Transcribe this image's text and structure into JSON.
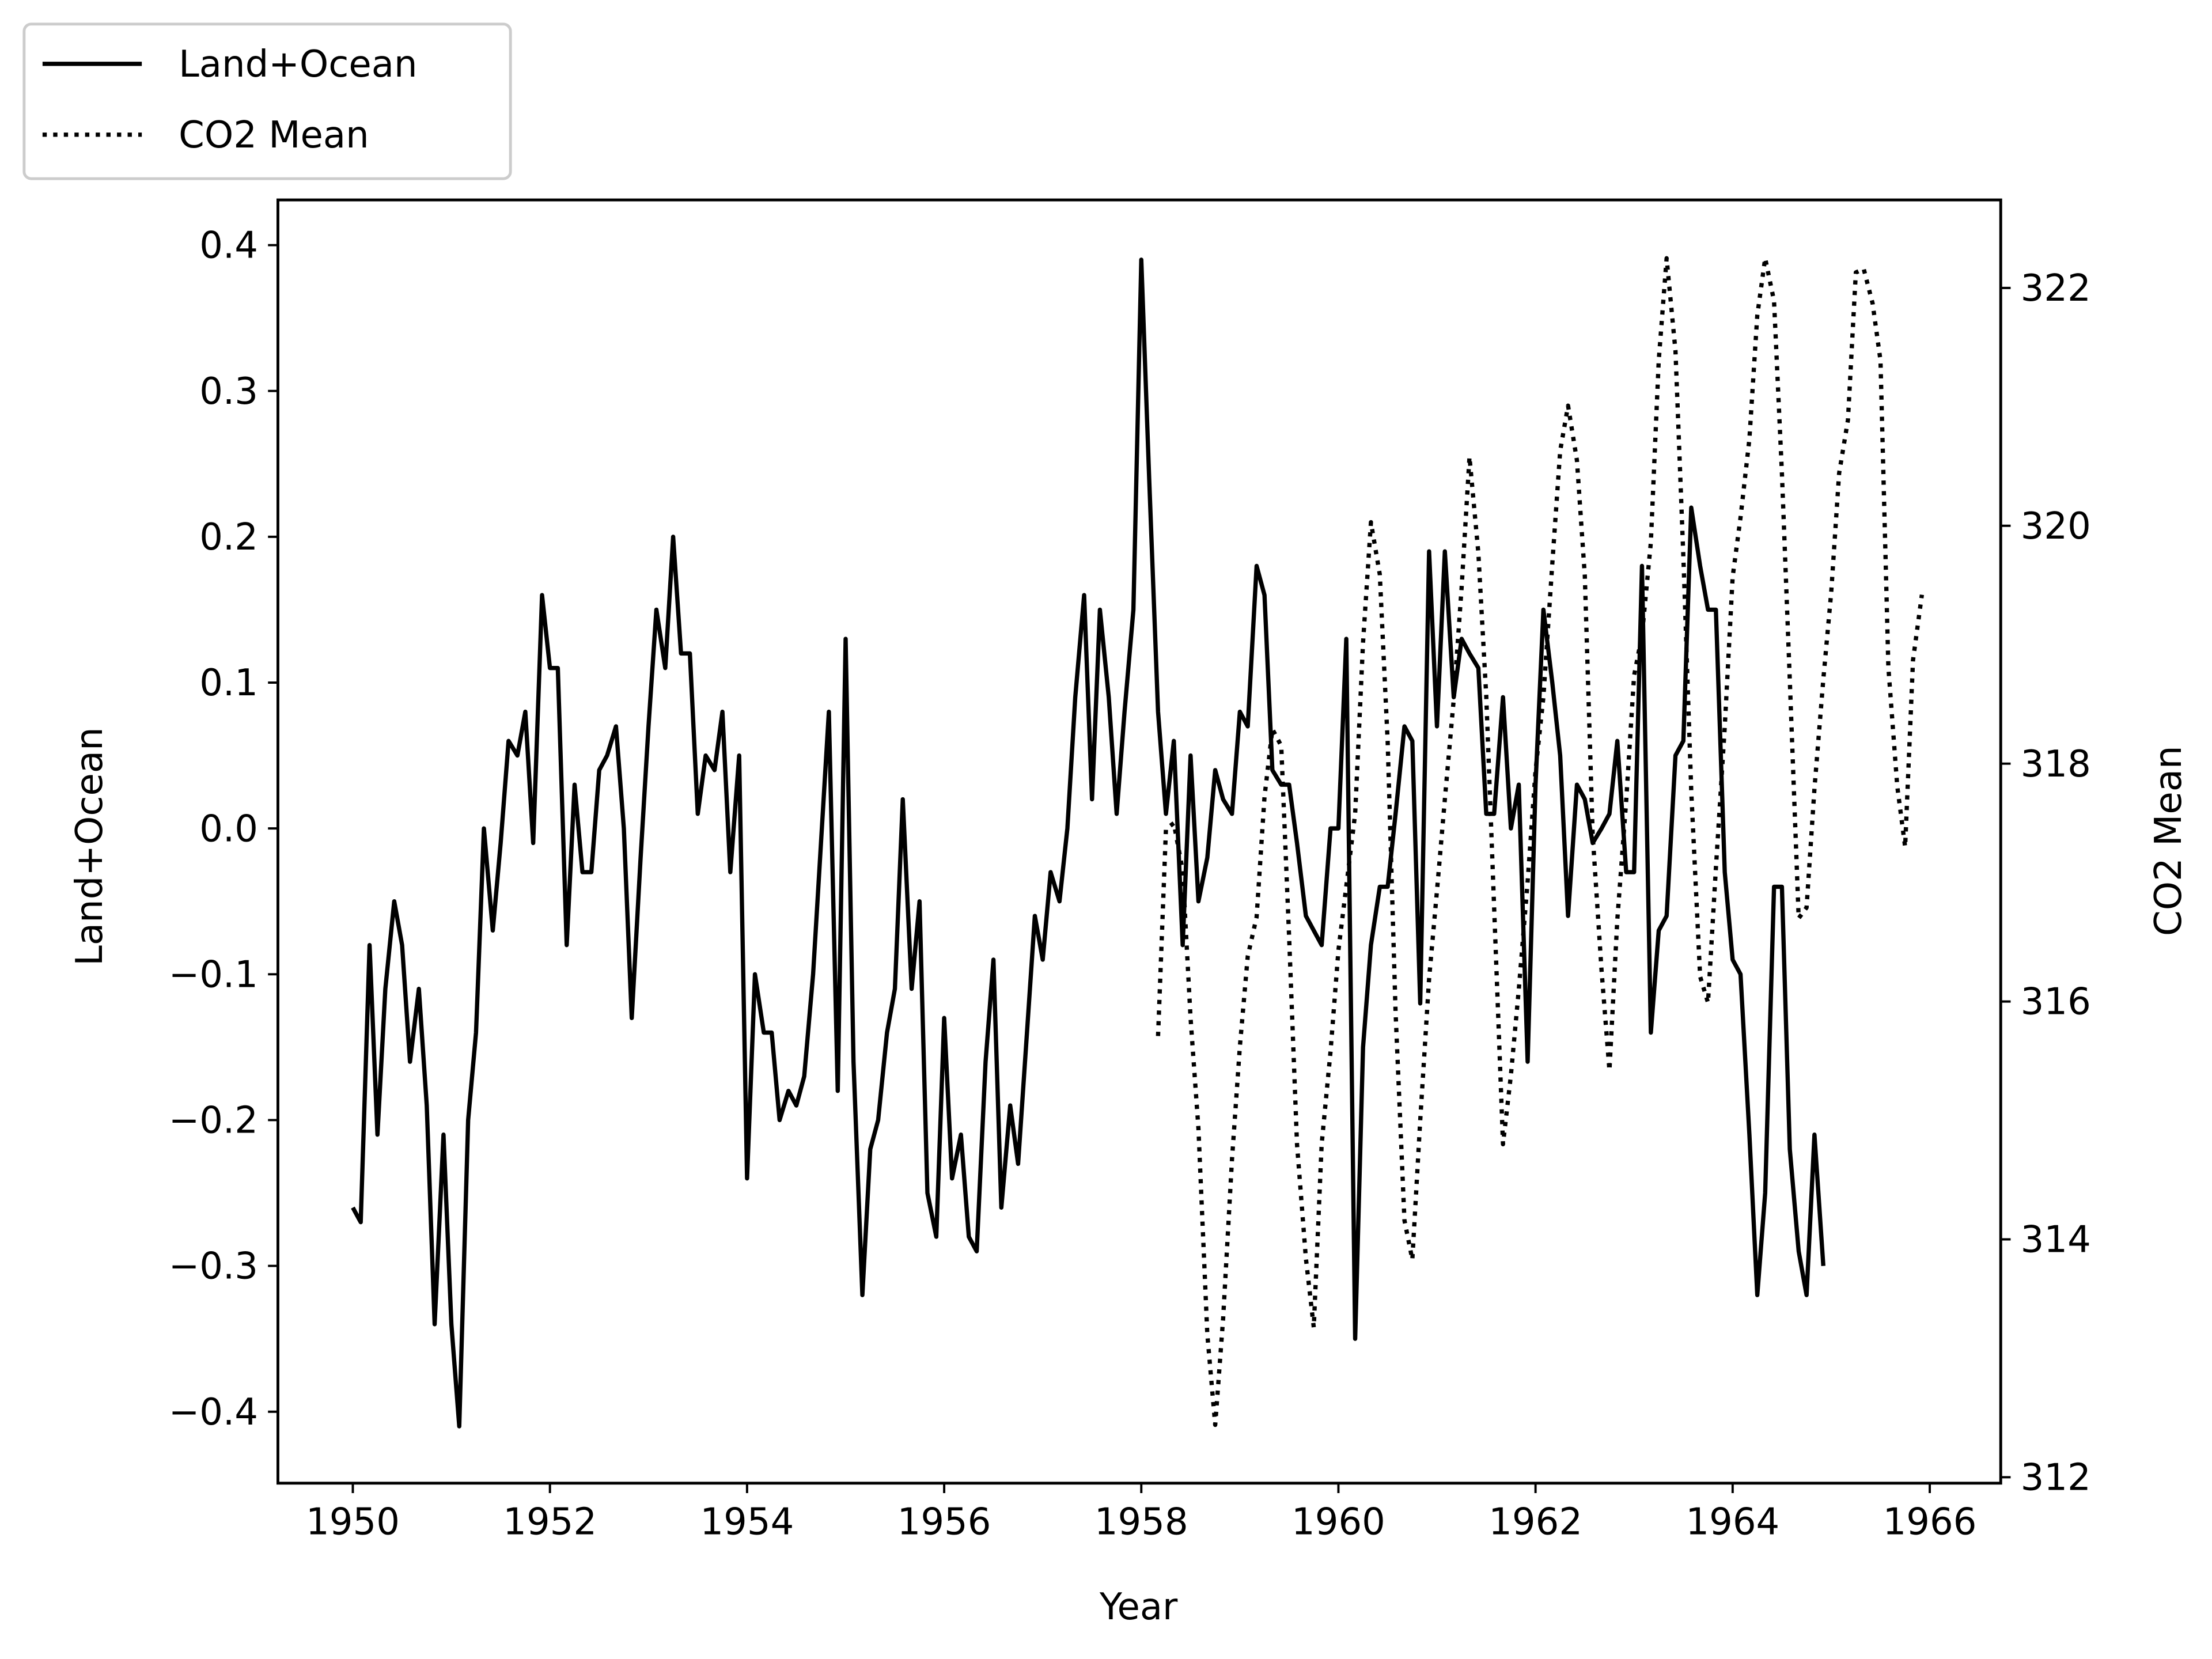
{
  "chart_data": {
    "type": "line",
    "x_label": "Year",
    "y_label": "Land+Ocean",
    "y2_label": "CO2 Mean",
    "xlim": [
      1949.24,
      1966.72
    ],
    "xticks": [
      1950,
      1952,
      1954,
      1956,
      1958,
      1960,
      1962,
      1964,
      1966
    ],
    "ylim": [
      -0.449,
      0.431
    ],
    "yticks": [
      {
        "value": -0.4,
        "label": "−0.4"
      },
      {
        "value": -0.3,
        "label": "−0.3"
      },
      {
        "value": -0.2,
        "label": "−0.2"
      },
      {
        "value": -0.1,
        "label": "−0.1"
      },
      {
        "value": 0,
        "label": "0.0"
      },
      0.1,
      0.2,
      0.3,
      0.4
    ],
    "y2lim": [
      311.95,
      322.74
    ],
    "y2ticks": [
      312,
      314,
      316,
      318,
      320,
      322
    ],
    "legend": "upper left outside",
    "series": [
      {
        "name": "Land+Ocean",
        "color": "#000000",
        "linestyle": "solid",
        "x": [
          1950,
          1950.08,
          1950.17,
          1950.25,
          1950.33,
          1950.42,
          1950.5,
          1950.58,
          1950.67,
          1950.75,
          1950.83,
          1950.92,
          1951,
          1951.08,
          1951.17,
          1951.25,
          1951.33,
          1951.42,
          1951.5,
          1951.58,
          1951.67,
          1951.75,
          1951.83,
          1951.92,
          1952,
          1952.08,
          1952.17,
          1952.25,
          1952.33,
          1952.42,
          1952.5,
          1952.58,
          1952.67,
          1952.75,
          1952.83,
          1952.92,
          1953,
          1953.08,
          1953.17,
          1953.25,
          1953.33,
          1953.42,
          1953.5,
          1953.58,
          1953.67,
          1953.75,
          1953.83,
          1953.92,
          1954,
          1954.08,
          1954.17,
          1954.25,
          1954.33,
          1954.42,
          1954.5,
          1954.58,
          1954.67,
          1954.75,
          1954.83,
          1954.92,
          1955,
          1955.08,
          1955.17,
          1955.25,
          1955.33,
          1955.42,
          1955.5,
          1955.58,
          1955.67,
          1955.75,
          1955.83,
          1955.92,
          1956,
          1956.08,
          1956.17,
          1956.25,
          1956.33,
          1956.42,
          1956.5,
          1956.58,
          1956.67,
          1956.75,
          1956.83,
          1956.92,
          1957,
          1957.08,
          1957.17,
          1957.25,
          1957.33,
          1957.42,
          1957.5,
          1957.58,
          1957.67,
          1957.75,
          1957.83,
          1957.92,
          1958,
          1958.08,
          1958.17,
          1958.25,
          1958.33,
          1958.42,
          1958.5,
          1958.58,
          1958.67,
          1958.75,
          1958.83,
          1958.92,
          1959,
          1959.08,
          1959.17,
          1959.25,
          1959.33,
          1959.42,
          1959.5,
          1959.58,
          1959.67,
          1959.75,
          1959.83,
          1959.92,
          1960,
          1960.08,
          1960.17,
          1960.25,
          1960.33,
          1960.42,
          1960.5,
          1960.58,
          1960.67,
          1960.75,
          1960.83,
          1960.92,
          1961,
          1961.08,
          1961.17,
          1961.25,
          1961.33,
          1961.42,
          1961.5,
          1961.58,
          1961.67,
          1961.75,
          1961.83,
          1961.92,
          1962,
          1962.08,
          1962.17,
          1962.25,
          1962.33,
          1962.42,
          1962.5,
          1962.58,
          1962.67,
          1962.75,
          1962.83,
          1962.92,
          1963,
          1963.08,
          1963.17,
          1963.25,
          1963.33,
          1963.42,
          1963.5,
          1963.58,
          1963.67,
          1963.75,
          1963.83,
          1963.92,
          1964,
          1964.08,
          1964.17,
          1964.25,
          1964.33,
          1964.42,
          1964.5,
          1964.58,
          1964.67,
          1964.75,
          1964.83,
          1964.92
        ],
        "values": [
          -0.26,
          -0.27,
          -0.08,
          -0.21,
          -0.11,
          -0.05,
          -0.08,
          -0.16,
          -0.11,
          -0.19,
          -0.34,
          -0.21,
          -0.34,
          -0.41,
          -0.2,
          -0.14,
          0,
          -0.07,
          -0.01,
          0.06,
          0.05,
          0.08,
          -0.01,
          0.16,
          0.11,
          0.11,
          -0.08,
          0.03,
          -0.03,
          -0.03,
          0.04,
          0.05,
          0.07,
          0,
          -0.13,
          -0.02,
          0.07,
          0.15,
          0.11,
          0.2,
          0.12,
          0.12,
          0.01,
          0.05,
          0.04,
          0.08,
          -0.03,
          0.05,
          -0.24,
          -0.1,
          -0.14,
          -0.14,
          -0.2,
          -0.18,
          -0.19,
          -0.17,
          -0.1,
          -0.01,
          0.08,
          -0.18,
          0.13,
          -0.16,
          -0.32,
          -0.22,
          -0.2,
          -0.14,
          -0.11,
          0.02,
          -0.11,
          -0.05,
          -0.25,
          -0.28,
          -0.13,
          -0.24,
          -0.21,
          -0.28,
          -0.29,
          -0.16,
          -0.09,
          -0.26,
          -0.19,
          -0.23,
          -0.15,
          -0.06,
          -0.09,
          -0.03,
          -0.05,
          0,
          0.09,
          0.16,
          0.02,
          0.15,
          0.09,
          0.01,
          0.08,
          0.15,
          0.39,
          0.24,
          0.08,
          0.01,
          0.06,
          -0.08,
          0.05,
          -0.05,
          -0.02,
          0.04,
          0.02,
          0.01,
          0.08,
          0.07,
          0.18,
          0.16,
          0.04,
          0.03,
          0.03,
          -0.01,
          -0.06,
          -0.07,
          -0.08,
          0,
          0,
          0.13,
          -0.35,
          -0.15,
          -0.08,
          -0.04,
          -0.04,
          0.01,
          0.07,
          0.06,
          -0.12,
          0.19,
          0.07,
          0.19,
          0.09,
          0.13,
          0.12,
          0.11,
          0.01,
          0.01,
          0.09,
          0,
          0.03,
          -0.16,
          0.03,
          0.15,
          0.1,
          0.05,
          -0.06,
          0.03,
          0.02,
          -0.01,
          0,
          0.01,
          0.06,
          -0.03,
          -0.03,
          0.18,
          -0.14,
          -0.07,
          -0.06,
          0.05,
          0.06,
          0.22,
          0.18,
          0.15,
          0.15,
          -0.03,
          -0.09,
          -0.1,
          -0.21,
          -0.32,
          -0.25,
          -0.04,
          -0.04,
          -0.22,
          -0.29,
          -0.32,
          -0.21,
          -0.3
        ]
      },
      {
        "name": "CO2 Mean",
        "color": "#000000",
        "linestyle": "dotted",
        "axis": "y2",
        "x": [
          1958.17,
          1958.25,
          1958.33,
          1958.42,
          1958.5,
          1958.58,
          1958.67,
          1958.75,
          1958.83,
          1958.92,
          1959,
          1959.08,
          1959.17,
          1959.25,
          1959.33,
          1959.42,
          1959.5,
          1959.58,
          1959.67,
          1959.75,
          1959.83,
          1959.92,
          1960,
          1960.08,
          1960.17,
          1960.25,
          1960.33,
          1960.42,
          1960.5,
          1960.58,
          1960.67,
          1960.75,
          1960.83,
          1960.92,
          1961,
          1961.08,
          1961.17,
          1961.25,
          1961.33,
          1961.42,
          1961.5,
          1961.58,
          1961.67,
          1961.75,
          1961.83,
          1961.92,
          1962,
          1962.08,
          1962.17,
          1962.25,
          1962.33,
          1962.42,
          1962.5,
          1962.58,
          1962.67,
          1962.75,
          1962.83,
          1962.92,
          1963,
          1963.08,
          1963.17,
          1963.25,
          1963.33,
          1963.42,
          1963.5,
          1963.58,
          1963.67,
          1963.75,
          1963.83,
          1963.92,
          1964,
          1964.08,
          1964.17,
          1964.25,
          1964.33,
          1964.42,
          1964.5,
          1964.58,
          1964.67,
          1964.75,
          1964.83,
          1964.92,
          1965,
          1965.08,
          1965.17,
          1965.25,
          1965.33,
          1965.42,
          1965.5,
          1965.58,
          1965.67,
          1965.75,
          1965.83,
          1965.92
        ],
        "values": [
          315.71,
          317.45,
          317.5,
          317.1,
          315.86,
          314.93,
          313.2,
          312.44,
          313.33,
          314.67,
          315.62,
          316.38,
          316.71,
          317.72,
          318.29,
          318.15,
          316.54,
          314.8,
          313.84,
          313.26,
          314.8,
          315.58,
          316.43,
          316.97,
          317.58,
          319.02,
          320.03,
          319.59,
          318.18,
          315.91,
          314.16,
          313.83,
          315,
          316.19,
          316.93,
          317.7,
          318.54,
          319.48,
          320.58,
          319.77,
          318.57,
          316.79,
          314.8,
          315.38,
          316.1,
          317.01,
          317.94,
          318.56,
          319.68,
          320.63,
          321.01,
          320.55,
          319.58,
          317.4,
          316.26,
          315.42,
          316.69,
          317.69,
          318.74,
          319.08,
          319.86,
          321.39,
          322.25,
          321.47,
          319.74,
          317.77,
          316.21,
          315.99,
          317.12,
          318.31,
          319.57,
          320.07,
          320.73,
          321.77,
          322.25,
          321.89,
          320.44,
          318.7,
          316.7,
          316.79,
          317.79,
          318.71,
          319.44,
          320.44,
          320.89,
          322.13,
          322.16,
          321.87,
          321.39,
          318.81,
          317.81,
          317.3,
          318.87,
          319.42
        ]
      }
    ]
  }
}
